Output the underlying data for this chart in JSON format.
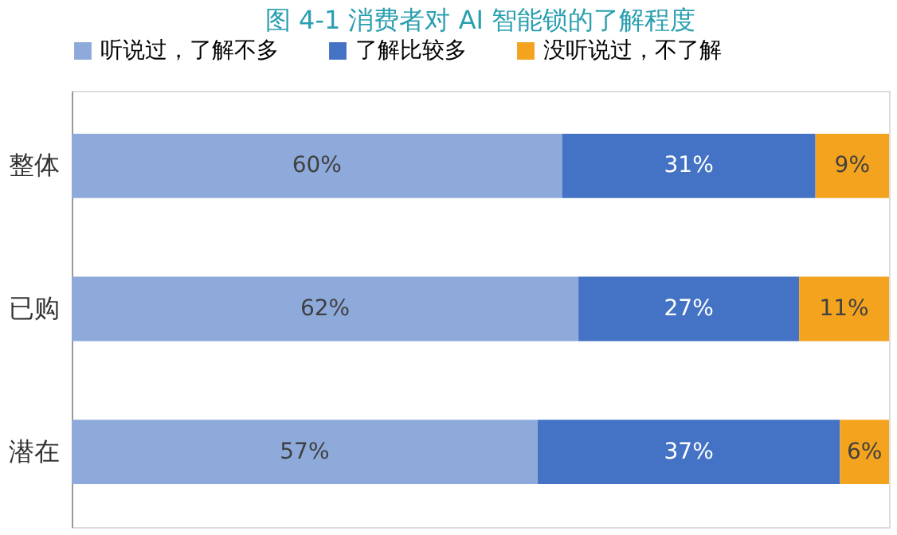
{
  "chart_data": {
    "type": "bar",
    "orientation": "horizontal",
    "stacked": true,
    "title": "图 4-1   消费者对 AI 智能锁的了解程度",
    "categories": [
      "整体",
      "已购",
      "潜在"
    ],
    "series": [
      {
        "name": "听说过，了解不多",
        "color": "#8eaadb",
        "values": [
          60,
          62,
          57
        ],
        "value_labels": [
          "60%",
          "62%",
          "57%"
        ]
      },
      {
        "name": "了解比较多",
        "color": "#4472c4",
        "values": [
          31,
          27,
          37
        ],
        "value_labels": [
          "31%",
          "27%",
          "37%"
        ]
      },
      {
        "name": "没听说过，不了解",
        "color": "#f4a31f",
        "values": [
          9,
          11,
          6
        ],
        "value_labels": [
          "9%",
          "11%",
          "6%"
        ]
      }
    ],
    "legend": "top"
  }
}
